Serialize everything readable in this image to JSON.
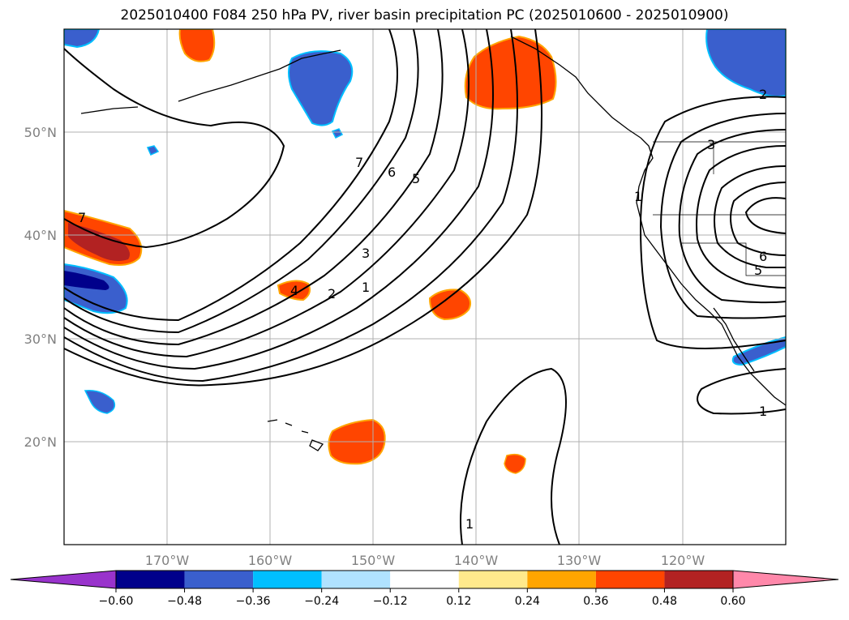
{
  "title": "2025010400 F084 250 hPa PV, river basin precipitation PC (2025010600 - 2025010900)",
  "map": {
    "lon_range": [
      -180,
      -110
    ],
    "lat_range": [
      10,
      60
    ],
    "lon_ticks": [
      "170°W",
      "160°W",
      "150°W",
      "140°W",
      "130°W",
      "120°W"
    ],
    "lat_ticks": [
      "50°N",
      "40°N",
      "30°N",
      "20°N"
    ],
    "gridlines": true,
    "contour_variable": "250 hPa PV",
    "contour_labels": [
      "7",
      "6",
      "5",
      "3",
      "2",
      "1",
      "4",
      "7",
      "1",
      "2",
      "3",
      "6",
      "5",
      "1",
      "1"
    ]
  },
  "colorbar": {
    "ticks": [
      "−0.60",
      "−0.48",
      "−0.36",
      "−0.24",
      "−0.12",
      "0.12",
      "0.24",
      "0.36",
      "0.48",
      "0.60"
    ],
    "colors": [
      "#9933cc",
      "#00008b",
      "#3a5fcd",
      "#00bfff",
      "#b0e2ff",
      "#ffffff",
      "#ffe98c",
      "#ffa500",
      "#ff4500",
      "#b22222",
      "#ff88aa"
    ],
    "extend": "both"
  }
}
